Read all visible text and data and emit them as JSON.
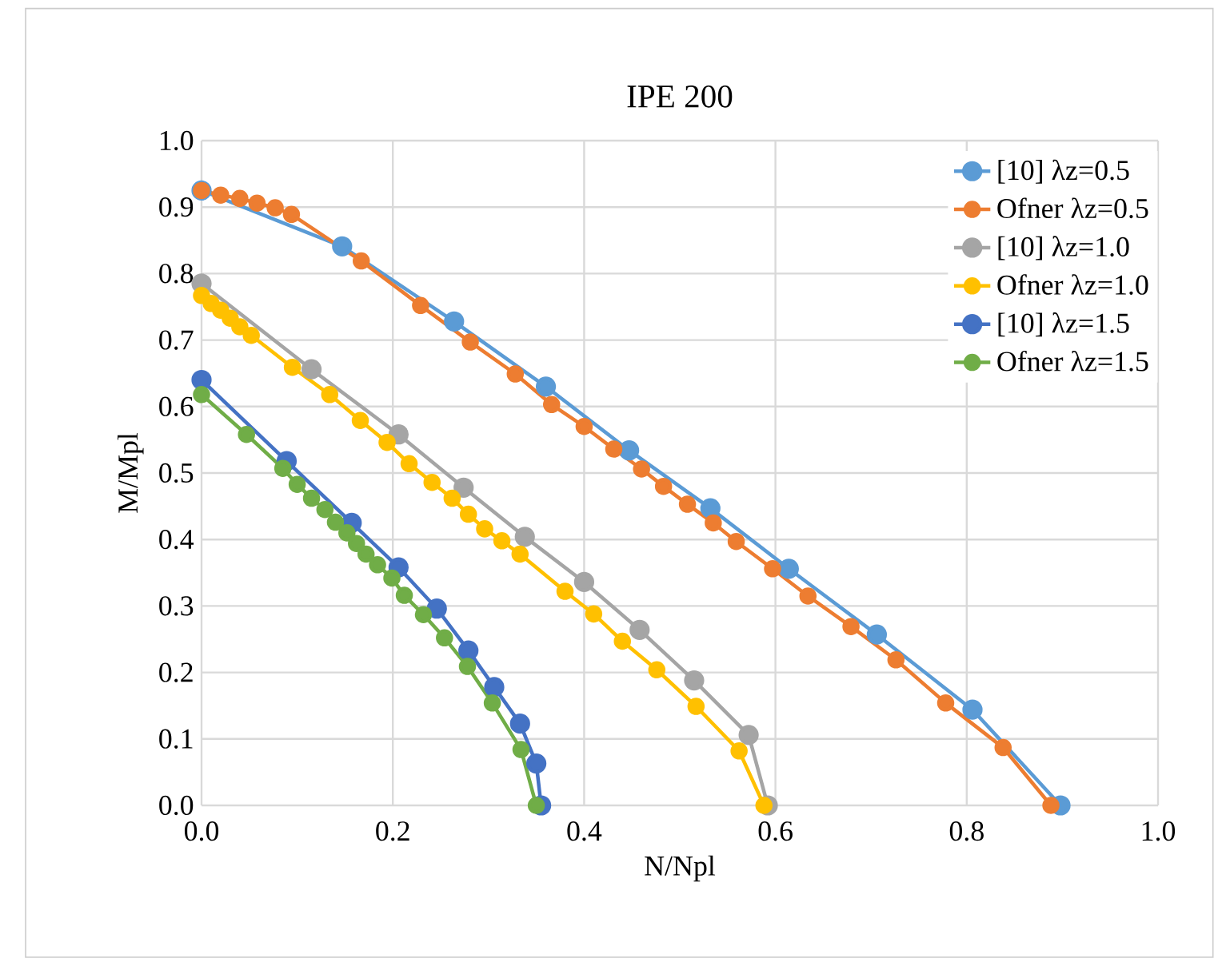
{
  "chart_data": {
    "type": "line",
    "title": "IPE 200",
    "xlabel": "N/Npl",
    "ylabel": "M/Mpl",
    "xlim": [
      0,
      1
    ],
    "ylim": [
      0,
      1
    ],
    "xticks": [
      {
        "value": 0,
        "label": "0.0"
      },
      0.2,
      0.4,
      0.6,
      0.8,
      {
        "value": 1,
        "label": "1.0"
      }
    ],
    "yticks": [
      {
        "value": 0,
        "label": "0.0"
      },
      0.1,
      0.2,
      0.3,
      0.4,
      0.5,
      0.6,
      0.7,
      0.8,
      0.9,
      {
        "value": 1,
        "label": "1.0"
      }
    ],
    "grid": true,
    "legend": "top right",
    "marker": "circle",
    "line_style": "solid",
    "series": [
      {
        "name": "[10] λz=0.5",
        "color": "#5b9bd5",
        "x": [
          0,
          0.147,
          0.264,
          0.36,
          0.447,
          0.532,
          0.614,
          0.706,
          0.806,
          0.898
        ],
        "values": [
          0.925,
          0.841,
          0.728,
          0.63,
          0.534,
          0.447,
          0.356,
          0.257,
          0.144,
          0
        ]
      },
      {
        "name": "Ofner λz=0.5",
        "color": "#ed7d31",
        "x": [
          0,
          0.02,
          0.04,
          0.058,
          0.077,
          0.094,
          0.167,
          0.229,
          0.281,
          0.328,
          0.366,
          0.4,
          0.431,
          0.46,
          0.483,
          0.508,
          0.535,
          0.559,
          0.597,
          0.634,
          0.679,
          0.726,
          0.778,
          0.838,
          0.888
        ],
        "values": [
          0.925,
          0.918,
          0.913,
          0.906,
          0.899,
          0.889,
          0.819,
          0.752,
          0.697,
          0.649,
          0.603,
          0.57,
          0.536,
          0.506,
          0.48,
          0.453,
          0.425,
          0.397,
          0.356,
          0.315,
          0.269,
          0.219,
          0.154,
          0.087,
          0
        ]
      },
      {
        "name": "[10] λz=1.0",
        "color": "#a5a5a5",
        "x": [
          0,
          0.115,
          0.206,
          0.274,
          0.338,
          0.4,
          0.458,
          0.515,
          0.572,
          0.592
        ],
        "values": [
          0.785,
          0.656,
          0.558,
          0.478,
          0.404,
          0.336,
          0.264,
          0.188,
          0.106,
          0
        ]
      },
      {
        "name": "Ofner λz=1.0",
        "color": "#ffc000",
        "x": [
          0,
          0.01,
          0.02,
          0.03,
          0.04,
          0.052,
          0.095,
          0.134,
          0.166,
          0.194,
          0.217,
          0.241,
          0.262,
          0.279,
          0.296,
          0.314,
          0.333,
          0.38,
          0.41,
          0.44,
          0.476,
          0.517,
          0.562,
          0.588
        ],
        "values": [
          0.767,
          0.755,
          0.745,
          0.733,
          0.72,
          0.707,
          0.659,
          0.618,
          0.579,
          0.546,
          0.514,
          0.486,
          0.462,
          0.438,
          0.416,
          0.398,
          0.378,
          0.322,
          0.288,
          0.247,
          0.204,
          0.149,
          0.082,
          0
        ]
      },
      {
        "name": "[10] λz=1.5",
        "color": "#4472c4",
        "x": [
          0,
          0.089,
          0.157,
          0.206,
          0.246,
          0.279,
          0.306,
          0.333,
          0.35,
          0.355
        ],
        "values": [
          0.64,
          0.518,
          0.425,
          0.358,
          0.296,
          0.233,
          0.178,
          0.123,
          0.063,
          0
        ]
      },
      {
        "name": "Ofner λz=1.5",
        "color": "#70ad47",
        "x": [
          0,
          0.047,
          0.085,
          0.1,
          0.115,
          0.129,
          0.14,
          0.152,
          0.162,
          0.172,
          0.184,
          0.199,
          0.212,
          0.232,
          0.254,
          0.278,
          0.304,
          0.334,
          0.35
        ],
        "values": [
          0.618,
          0.558,
          0.507,
          0.483,
          0.462,
          0.445,
          0.426,
          0.41,
          0.394,
          0.378,
          0.362,
          0.342,
          0.316,
          0.287,
          0.252,
          0.209,
          0.154,
          0.084,
          0
        ]
      }
    ]
  }
}
